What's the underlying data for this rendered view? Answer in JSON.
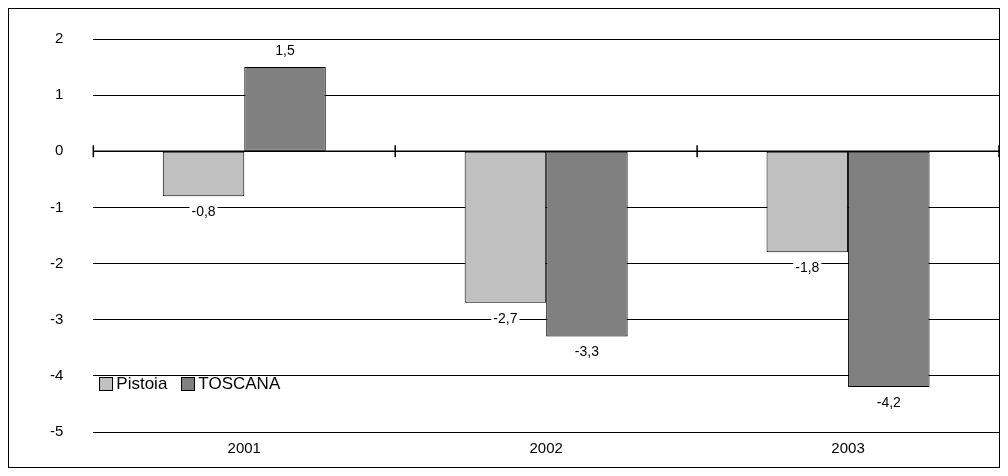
{
  "chart_data": {
    "type": "bar",
    "categories": [
      "2001",
      "2002",
      "2003"
    ],
    "series": [
      {
        "name": "Pistoia",
        "color": "#c0c0c0",
        "values": [
          -0.8,
          -2.7,
          -1.8
        ],
        "value_labels": [
          "-0,8",
          "-2,7",
          "-1,8"
        ]
      },
      {
        "name": "TOSCANA",
        "color": "#808080",
        "values": [
          1.5,
          -3.3,
          -4.2
        ],
        "value_labels": [
          "1,5",
          "-3,3",
          "-4,2"
        ]
      }
    ],
    "ylim": [
      -5,
      2
    ],
    "yticks": [
      -5,
      -4,
      -3,
      -2,
      -1,
      0,
      1,
      2
    ],
    "grid": "y",
    "legend": "bottom left"
  }
}
